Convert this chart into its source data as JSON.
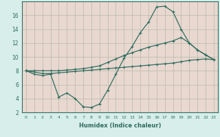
{
  "xlabel": "Humidex (Indice chaleur)",
  "x_values": [
    0,
    1,
    2,
    3,
    4,
    5,
    6,
    7,
    8,
    9,
    10,
    11,
    12,
    13,
    14,
    15,
    16,
    17,
    18,
    19,
    20,
    21,
    22,
    23
  ],
  "line1": [
    8,
    7.5,
    7.3,
    7.5,
    4.2,
    4.8,
    4.0,
    2.8,
    2.7,
    3.2,
    5.2,
    7.5,
    9.8,
    11.5,
    13.5,
    15.0,
    17.2,
    17.3,
    16.5,
    14.0,
    12.0,
    11.0,
    10.3,
    9.6
  ],
  "line2": [
    8.0,
    8.0,
    8.0,
    8.0,
    8.0,
    8.1,
    8.2,
    8.3,
    8.5,
    8.7,
    9.2,
    9.7,
    10.2,
    10.6,
    11.0,
    11.4,
    11.7,
    12.0,
    12.3,
    12.8,
    12.0,
    11.0,
    10.3,
    9.6
  ],
  "line3": [
    8.0,
    7.8,
    7.6,
    7.6,
    7.7,
    7.8,
    7.9,
    8.0,
    8.1,
    8.2,
    8.3,
    8.4,
    8.5,
    8.6,
    8.7,
    8.8,
    8.9,
    9.0,
    9.1,
    9.3,
    9.5,
    9.6,
    9.7,
    9.6
  ],
  "line_color": "#2e6b5e",
  "bg_color": "#d7eeea",
  "grid_bg_color": "#e8d8d0",
  "grid_line_color": "#b8b8a8",
  "ylim": [
    2,
    18
  ],
  "yticks": [
    2,
    4,
    6,
    8,
    10,
    12,
    14,
    16
  ],
  "xticks": [
    0,
    1,
    2,
    3,
    4,
    5,
    6,
    7,
    8,
    9,
    10,
    11,
    12,
    13,
    14,
    15,
    16,
    17,
    18,
    19,
    20,
    21,
    22,
    23
  ],
  "marker": "+"
}
